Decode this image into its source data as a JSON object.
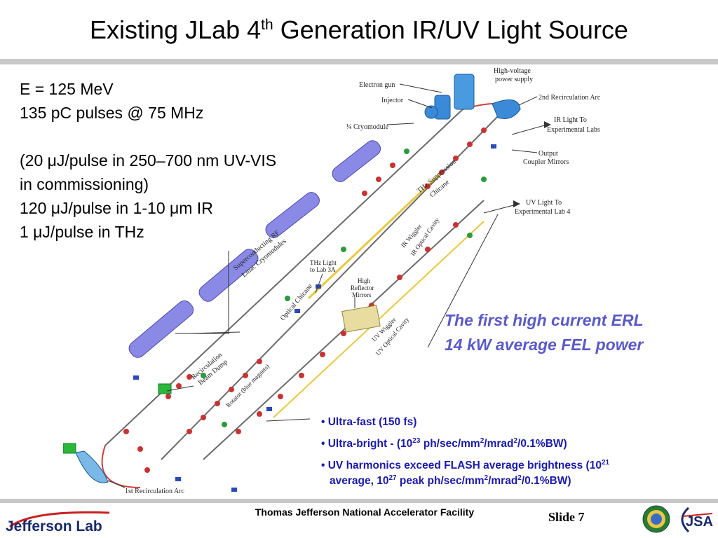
{
  "title": {
    "pre": "Existing JLab 4",
    "sup": "th",
    "post": " Generation IR/UV Light Source"
  },
  "specs": {
    "line1": "E = 125 MeV",
    "line2": "135 pC pulses @ 75 MHz",
    "line3": "(20 μJ/pulse in 250–700 nm UV-VIS",
    "line4": "in commissioning)",
    "line5": "120 μJ/pulse in 1-10 μm IR",
    "line6": "1 μJ/pulse in THz"
  },
  "diagram_labels": {
    "hv_supply_1": "High-voltage",
    "hv_supply_2": "power supply",
    "electron_gun": "Electron gun",
    "injector": "Injector",
    "cryomodule": "¼ Cryomodule",
    "second_arc": "2nd Recirculation Arc",
    "ir_light_1": "IR Light To",
    "ir_light_2": "Experimental Labs",
    "output_coupler_1": "Output",
    "output_coupler_2": "Coupler Mirrors",
    "thz_suppression_1": "THz Suppression",
    "thz_suppression_2": "Chicane",
    "uv_light_1": "UV Light To",
    "uv_light_2": "Experimental Lab 4",
    "srf_1": "Superconducting RF",
    "srf_2": "Linac Cryomodules",
    "ir_wiggler": "IR Wiggler",
    "ir_optical_cavity": "IR Optical Cavity",
    "thz_light_1": "THz Light",
    "thz_light_2": "to Lab 3A",
    "high_reflector_1": "High",
    "high_reflector_2": "Reflector",
    "high_reflector_3": "Mirrors",
    "optical_chicane": "Optical Chicane",
    "uv_wiggler": "UV Wiggler",
    "uv_optical_cavity": "UV Optical Cavity",
    "beam_dump_1": "Recirculation",
    "beam_dump_2": "Beam Dump",
    "rotator": "Rotator (blue magnets)",
    "first_arc": "1st Recirculation Arc"
  },
  "erl": {
    "line1": "The first high current ERL",
    "line2": "14 kW average FEL power"
  },
  "bullets": {
    "b1": "Ultra-fast (150 fs)",
    "b2_a": "Ultra-bright  - (10",
    "b2_s1": "23",
    "b2_b": " ph/sec/mm",
    "b2_s2": "2",
    "b2_c": "/mrad",
    "b2_s3": "2",
    "b2_d": "/0.1%BW)",
    "b3_a": "UV harmonics exceed FLASH average brightness (10",
    "b3_s1": "21",
    "b3_b": "average, 10",
    "b3_s2": "27",
    "b3_c": " peak ph/sec/mm",
    "b3_s3": "2",
    "b3_d": "/mrad",
    "b3_s4": "2",
    "b3_e": "/0.1%BW)"
  },
  "footer": {
    "center": "Thomas Jefferson National Accelerator Facility",
    "slide": "Slide 7",
    "logo": "Jefferson Lab",
    "partner": "JSA"
  },
  "colors": {
    "title_accent": "#5a5ac8",
    "bullet_text": "#1a1aaa",
    "cryomodule": "#8a8ae6"
  }
}
